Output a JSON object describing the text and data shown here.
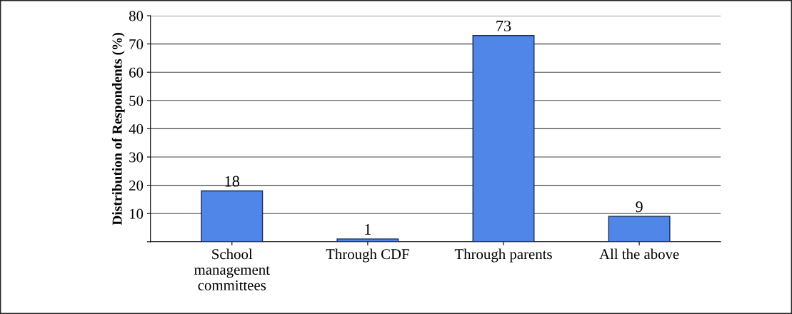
{
  "chart_data": {
    "type": "bar",
    "ylabel": "Distribution of Respondents (%)",
    "categories": [
      "School\nmanagement\ncommittees",
      "Through CDF",
      "Through parents",
      "All the above"
    ],
    "values": [
      18,
      1,
      73,
      9
    ],
    "color": "#4f86e8",
    "ylim": [
      0,
      80
    ],
    "yticks": [
      {
        "value": 0,
        "label": null
      },
      10,
      20,
      30,
      40,
      50,
      60,
      70,
      80
    ],
    "grid": "y",
    "data_labels": true
  }
}
